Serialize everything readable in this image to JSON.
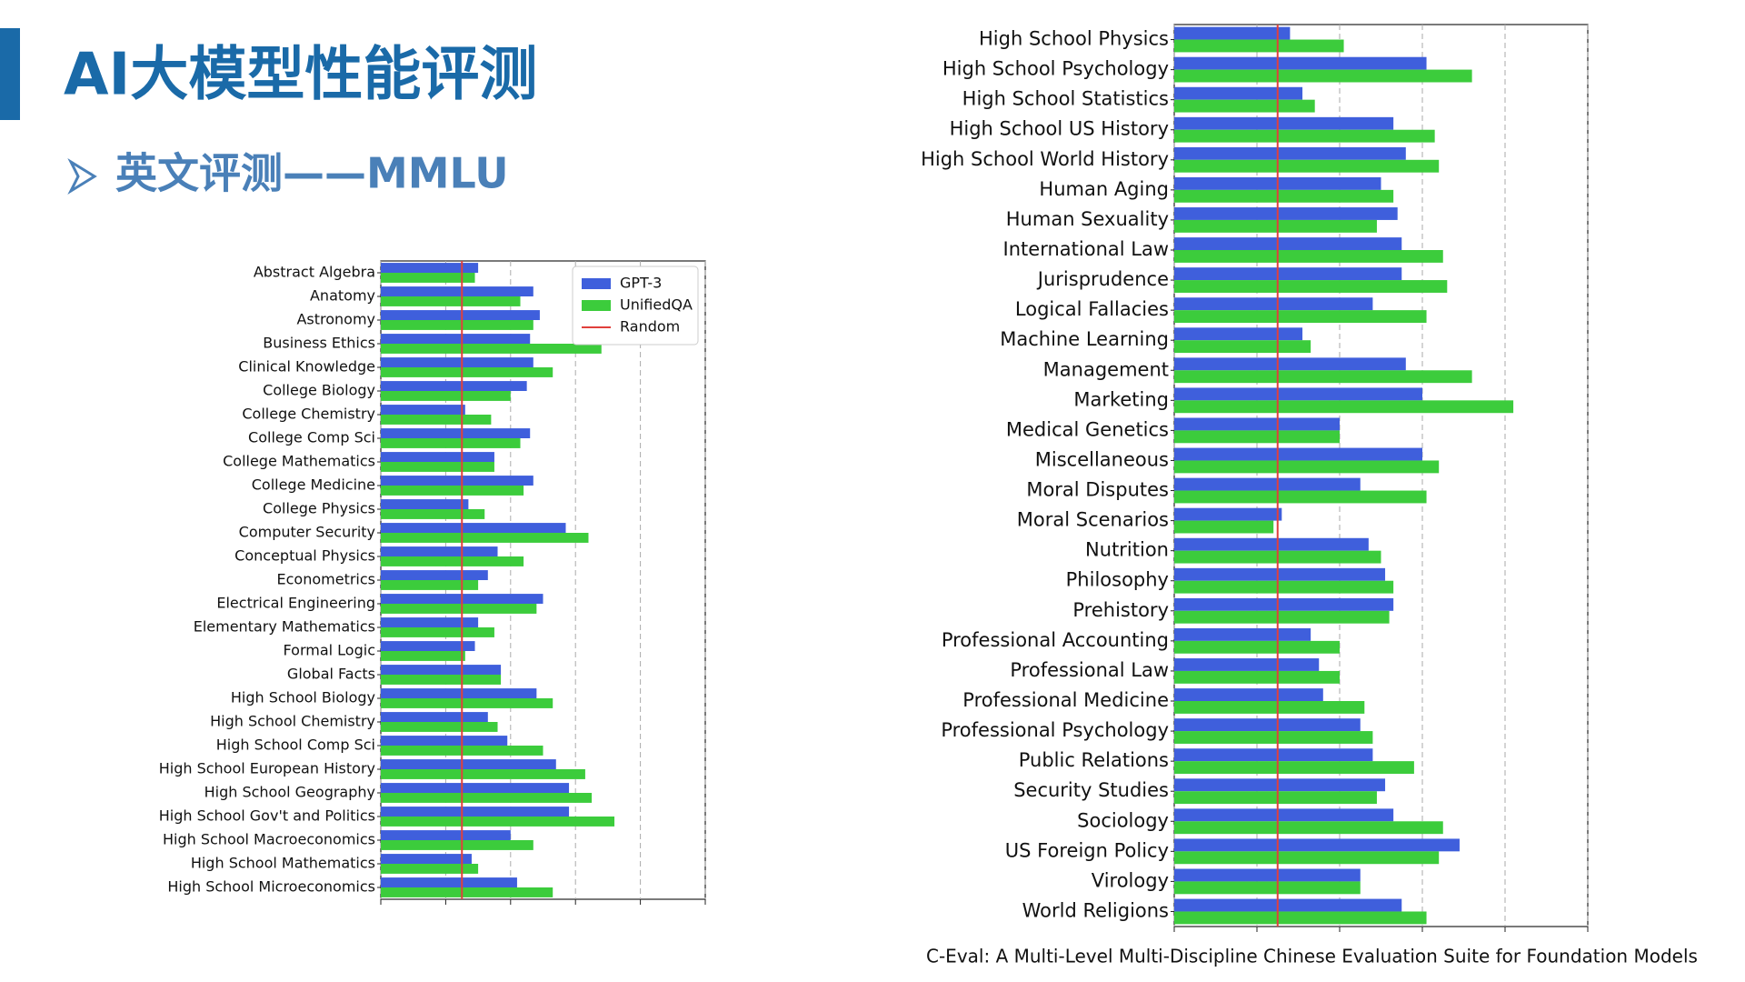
{
  "slide": {
    "title": "AI大模型性能评测",
    "subtitle": "英文评测——MMLU",
    "caption": "C-Eval: A Multi-Level Multi-Discipline Chinese Evaluation Suite for Foundation Models"
  },
  "chart_data": [
    {
      "type": "bar",
      "orientation": "horizontal",
      "categories": [
        "Abstract Algebra",
        "Anatomy",
        "Astronomy",
        "Business Ethics",
        "Clinical Knowledge",
        "College Biology",
        "College Chemistry",
        "College Comp Sci",
        "College Mathematics",
        "College Medicine",
        "College Physics",
        "Computer Security",
        "Conceptual Physics",
        "Econometrics",
        "Electrical Engineering",
        "Elementary Mathematics",
        "Formal Logic",
        "Global Facts",
        "High School Biology",
        "High School Chemistry",
        "High School Comp Sci",
        "High School European History",
        "High School Geography",
        "High School Gov't and Politics",
        "High School Macroeconomics",
        "High School Mathematics",
        "High School Microeconomics"
      ],
      "series": [
        {
          "name": "GPT-3",
          "color": "#3f5fdc",
          "values": [
            30,
            47,
            49,
            46,
            47,
            45,
            26,
            46,
            35,
            47,
            27,
            57,
            36,
            33,
            50,
            30,
            29,
            37,
            48,
            33,
            39,
            54,
            58,
            58,
            40,
            28,
            42
          ]
        },
        {
          "name": "UnifiedQA",
          "color": "#3ccc3c",
          "values": [
            29,
            43,
            47,
            68,
            53,
            40,
            34,
            43,
            35,
            44,
            32,
            64,
            44,
            30,
            48,
            35,
            26,
            37,
            53,
            36,
            50,
            63,
            65,
            72,
            47,
            30,
            53
          ]
        }
      ],
      "reference_line": {
        "name": "Random",
        "value": 25,
        "color": "#e0403c"
      },
      "xlim": [
        0,
        100
      ],
      "xticks": [
        0,
        20,
        40,
        60,
        80,
        100
      ],
      "grid": true,
      "legend": "upper right"
    },
    {
      "type": "bar",
      "orientation": "horizontal",
      "categories": [
        "High School Physics",
        "High School Psychology",
        "High School Statistics",
        "High School US History",
        "High School World History",
        "Human Aging",
        "Human Sexuality",
        "International Law",
        "Jurisprudence",
        "Logical Fallacies",
        "Machine Learning",
        "Management",
        "Marketing",
        "Medical Genetics",
        "Miscellaneous",
        "Moral Disputes",
        "Moral Scenarios",
        "Nutrition",
        "Philosophy",
        "Prehistory",
        "Professional Accounting",
        "Professional Law",
        "Professional Medicine",
        "Professional Psychology",
        "Public Relations",
        "Security Studies",
        "Sociology",
        "US Foreign Policy",
        "Virology",
        "World Religions"
      ],
      "series": [
        {
          "color": "#3f5fdc",
          "values": [
            28,
            61,
            31,
            53,
            56,
            50,
            54,
            55,
            55,
            48,
            31,
            56,
            60,
            40,
            60,
            45,
            26,
            47,
            51,
            53,
            33,
            35,
            36,
            45,
            48,
            51,
            53,
            69,
            45,
            55
          ]
        },
        {
          "color": "#3ccc3c",
          "values": [
            41,
            72,
            34,
            63,
            64,
            53,
            49,
            65,
            66,
            61,
            33,
            72,
            82,
            40,
            64,
            61,
            24,
            50,
            53,
            52,
            40,
            40,
            46,
            48,
            58,
            49,
            65,
            64,
            45,
            61
          ]
        }
      ],
      "reference_line": {
        "value": 25,
        "color": "#e0403c"
      },
      "xlim": [
        0,
        100
      ],
      "xticks": [
        0,
        20,
        40,
        60,
        80,
        100
      ],
      "grid": true
    }
  ]
}
